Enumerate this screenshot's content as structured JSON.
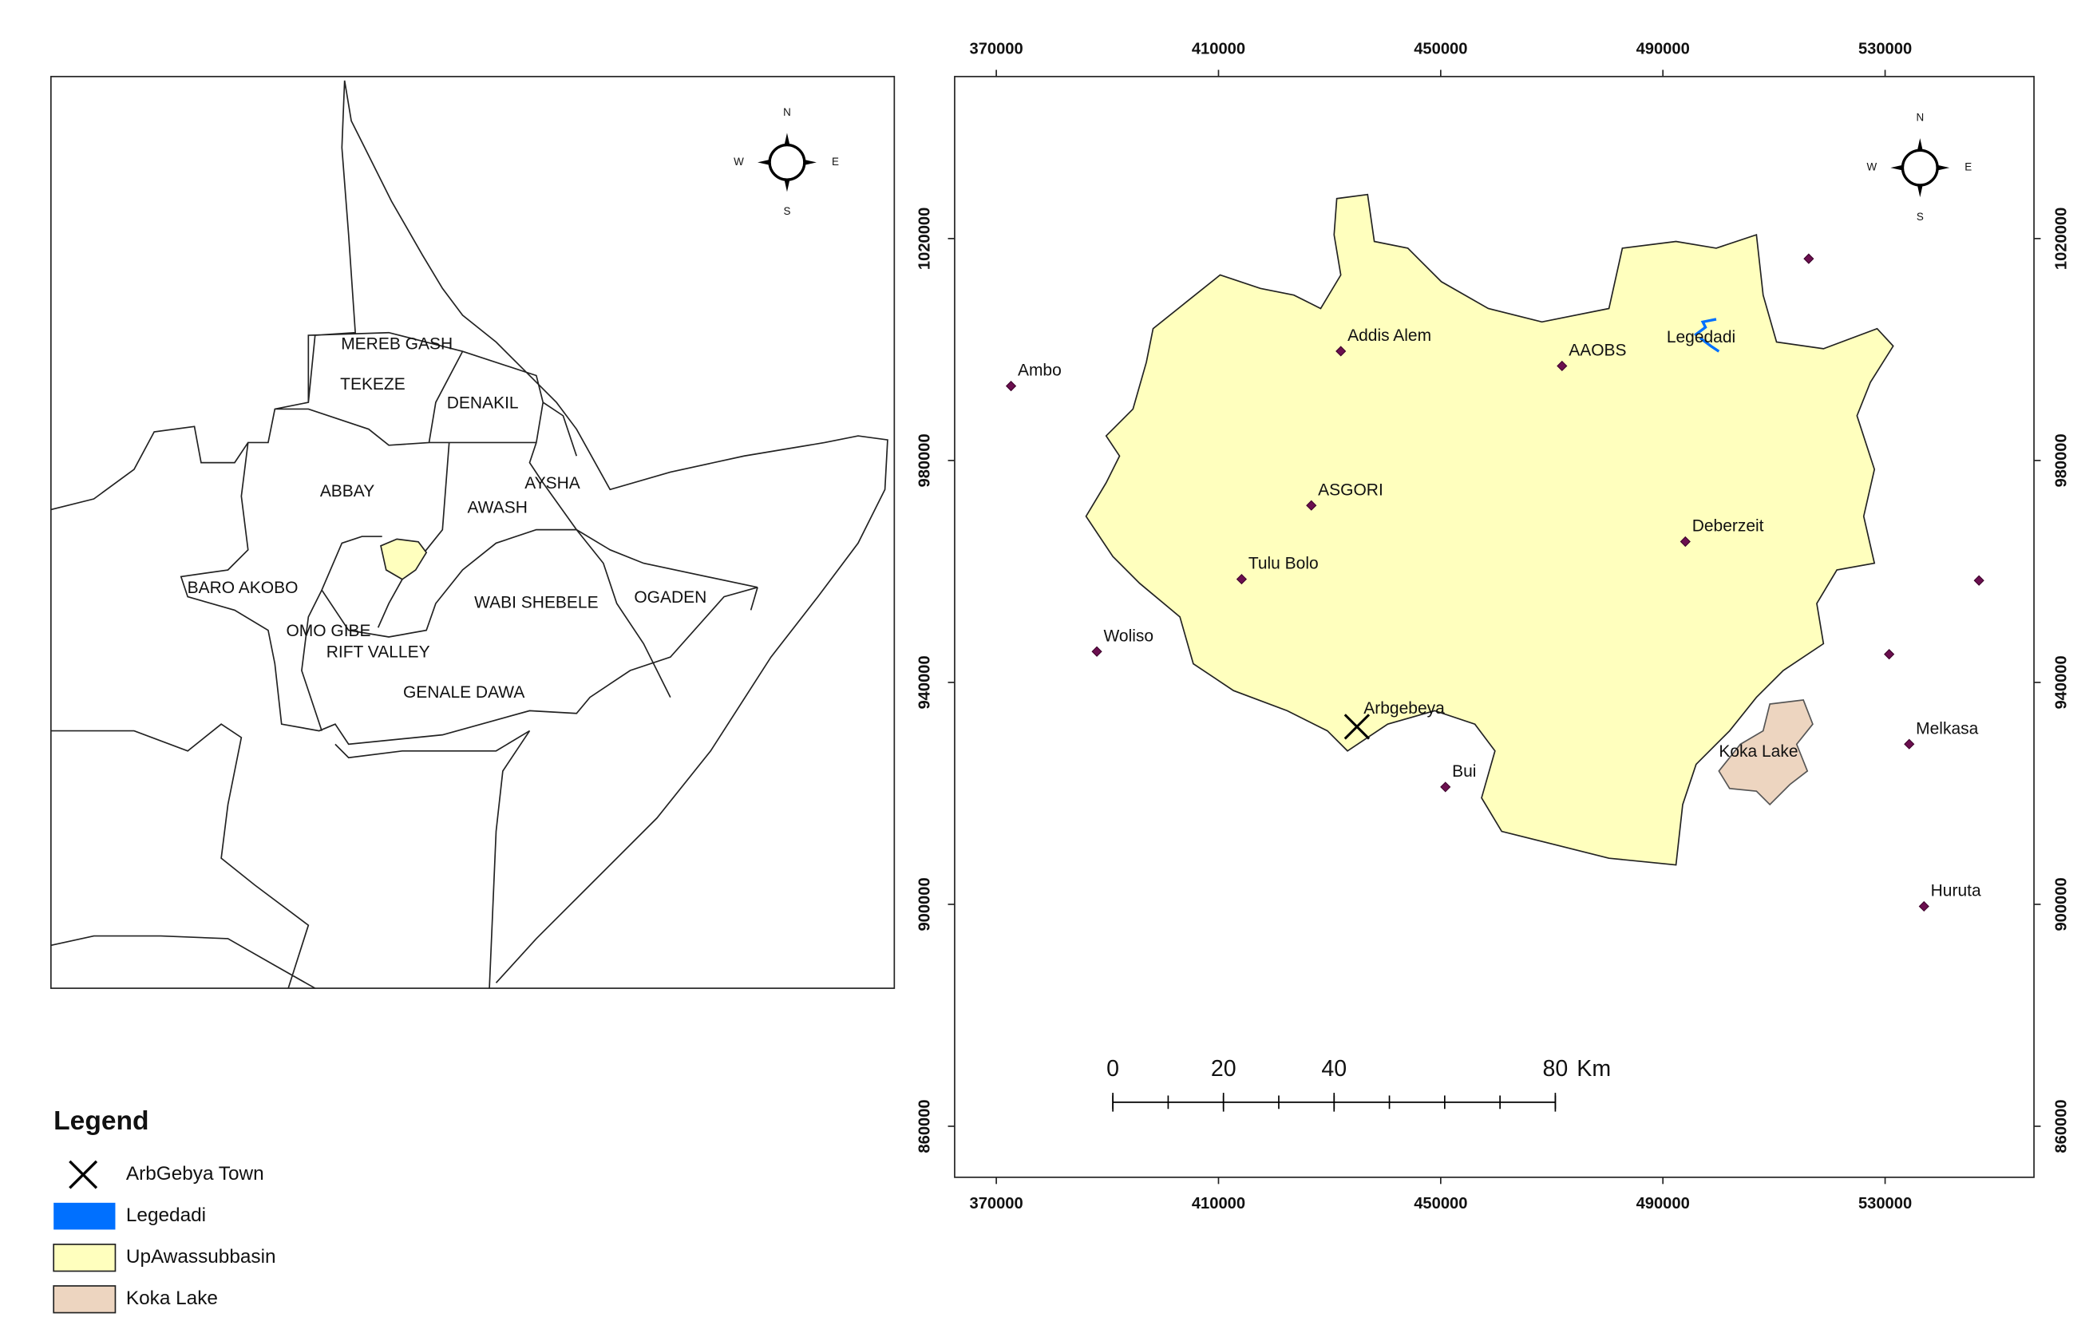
{
  "overview_map": {
    "regions": [
      "MEREB GASH",
      "TEKEZE",
      "DENAKIL",
      "ABBAY",
      "AWASH",
      "AYSHA",
      "BARO AKOBO",
      "OMO GIBE",
      "RIFT VALLEY",
      "WABI SHEBELE",
      "OGADEN",
      "GENALE DAWA"
    ]
  },
  "compass": {
    "n": "N",
    "e": "E",
    "s": "S",
    "w": "W"
  },
  "study_map": {
    "xlim": [
      362500,
      556800
    ],
    "ylim": [
      850800,
      1049200
    ],
    "xticks": [
      370000,
      410000,
      450000,
      490000,
      530000
    ],
    "yticks": [
      860000,
      900000,
      940000,
      980000,
      1020000
    ],
    "stations": [
      {
        "name": "Ambo",
        "x": 372650,
        "y": 993420
      },
      {
        "name": "Addis Alem",
        "x": 432020,
        "y": 999700
      },
      {
        "name": "AAOBS",
        "x": 471840,
        "y": 997040
      },
      {
        "name": "ASGORI",
        "x": 426710,
        "y": 971900
      },
      {
        "name": "Deberzeit",
        "x": 494040,
        "y": 965380
      },
      {
        "name": "Tulu Bolo",
        "x": 414160,
        "y": 958610
      },
      {
        "name": "Woliso",
        "x": 388100,
        "y": 945560
      },
      {
        "name": "Bui",
        "x": 450850,
        "y": 921150
      },
      {
        "name": "Melkasa",
        "x": 534340,
        "y": 928880
      },
      {
        "name": "Huruta",
        "x": 537000,
        "y": 899640
      },
      {
        "x": 516250,
        "y": 1016370
      },
      {
        "x": 546900,
        "y": 958370
      },
      {
        "x": 530730,
        "y": 945080
      }
    ],
    "town": {
      "name": "Arbgebeya",
      "x": 434920,
      "y": 932020
    },
    "river_label": "Legedadi",
    "lake_label": "Koka Lake"
  },
  "scale_bar": {
    "ticks": [
      0,
      20,
      40,
      80
    ],
    "unit": "Km"
  },
  "legend": {
    "title": "Legend",
    "items": [
      {
        "name": "ArbGebya Town",
        "color": "#000000"
      },
      {
        "name": "Legedadi",
        "color": "#0070ff"
      },
      {
        "name": "UpAwassubbasin",
        "color": "#ffffbe"
      },
      {
        "name": "Koka Lake",
        "color": "#edd5c0"
      }
    ]
  }
}
